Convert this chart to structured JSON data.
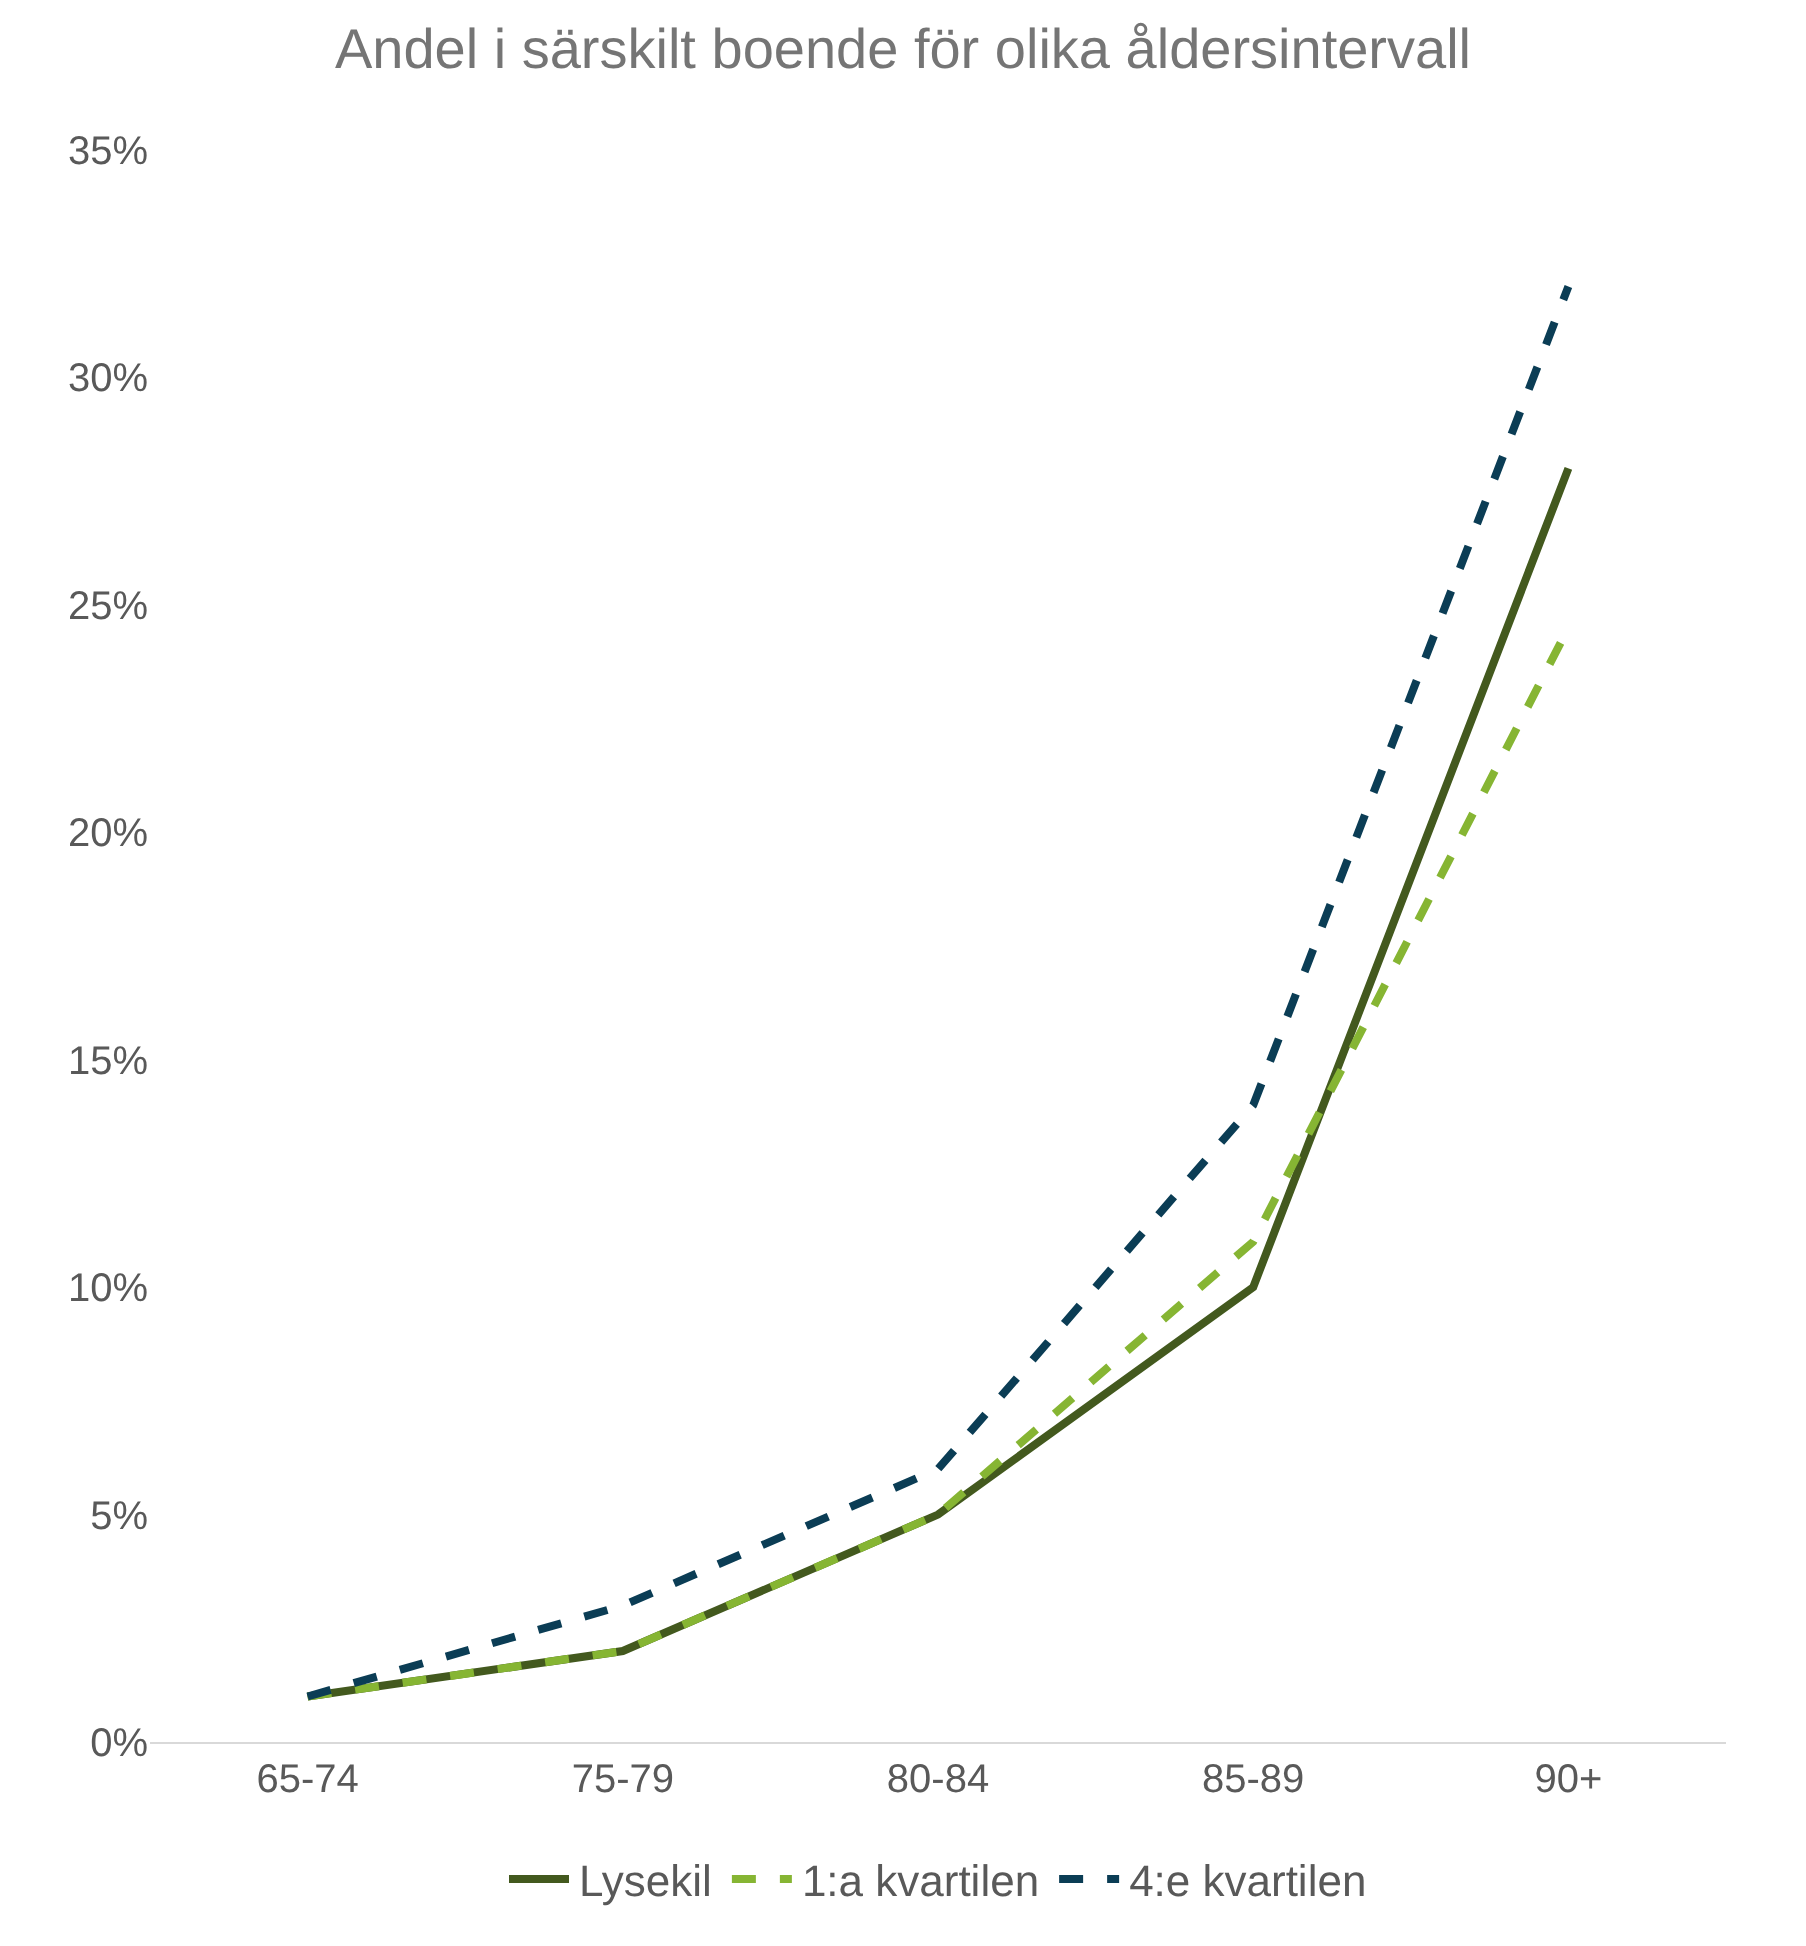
{
  "chart_data": {
    "type": "line",
    "title": "Andel i särskilt boende för olika åldersintervall",
    "categories": [
      "65-74",
      "75-79",
      "80-84",
      "85-89",
      "90+"
    ],
    "series": [
      {
        "name": "Lysekil",
        "color": "#43591e",
        "values": [
          1,
          2,
          5,
          10,
          28
        ],
        "line_style": "solid"
      },
      {
        "name": "1:a kvartilen",
        "color": "#86b533",
        "values": [
          1,
          2,
          5,
          11,
          24.5
        ],
        "line_style": "dashed"
      },
      {
        "name": "4:e kvartilen",
        "color": "#0b3d55",
        "values": [
          1,
          3,
          6,
          14,
          32
        ],
        "line_style": "dashed"
      }
    ],
    "ylim": [
      0,
      35
    ],
    "yticks": [
      {
        "value": 0,
        "label": "0%"
      },
      {
        "value": 5,
        "label": "5%"
      },
      {
        "value": 10,
        "label": "10%"
      },
      {
        "value": 15,
        "label": "15%"
      },
      {
        "value": 20,
        "label": "20%"
      },
      {
        "value": 25,
        "label": "25%"
      },
      {
        "value": 30,
        "label": "30%"
      },
      {
        "value": 35,
        "label": "35%"
      }
    ],
    "grid": false,
    "legend": "bottom",
    "marker": "none"
  }
}
